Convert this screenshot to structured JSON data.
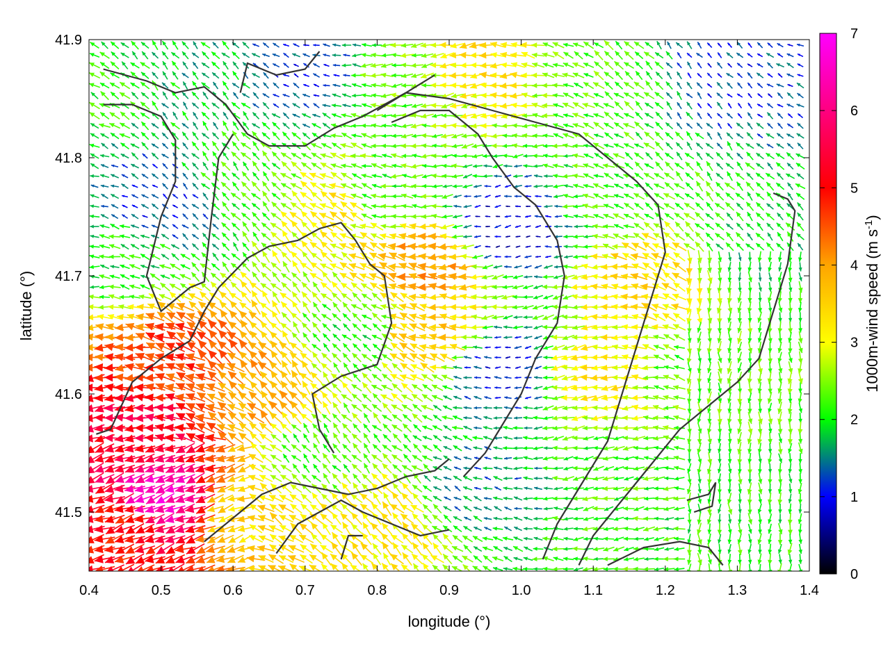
{
  "chart_data": {
    "type": "vector-field",
    "xlabel": "longitude (°)",
    "ylabel": "latitude (°)",
    "xlim": [
      0.4,
      1.4
    ],
    "ylim": [
      41.45,
      41.9
    ],
    "x_ticks": [
      "0.4",
      "0.5",
      "0.6",
      "0.7",
      "0.8",
      "0.9",
      "1.0",
      "1.1",
      "1.2",
      "1.3",
      "1.4"
    ],
    "y_ticks": [
      "41.5",
      "41.6",
      "41.7",
      "41.8",
      "41.9"
    ],
    "colorbar": {
      "label_main": "1000m-wind speed (m s",
      "label_sup": "-1",
      "label_end": ")",
      "range": [
        0,
        7
      ],
      "ticks": [
        "0",
        "1",
        "2",
        "3",
        "4",
        "5",
        "6",
        "7"
      ],
      "colormap": [
        "#000000",
        "#0000ff",
        "#00ff00",
        "#ffff00",
        "#ff0000",
        "#ff00ff"
      ]
    },
    "speed_regions": [
      {
        "lon": 0.42,
        "lat": 41.87,
        "speed": 2.1
      },
      {
        "lon": 0.55,
        "lat": 41.86,
        "speed": 1.8
      },
      {
        "lon": 0.7,
        "lat": 41.87,
        "speed": 1.2
      },
      {
        "lon": 0.83,
        "lat": 41.86,
        "speed": 2.4
      },
      {
        "lon": 0.95,
        "lat": 41.88,
        "speed": 3.3
      },
      {
        "lon": 1.1,
        "lat": 41.87,
        "speed": 2.3
      },
      {
        "lon": 1.3,
        "lat": 41.87,
        "speed": 1.2
      },
      {
        "lon": 0.5,
        "lat": 41.76,
        "speed": 1.2
      },
      {
        "lon": 0.45,
        "lat": 41.72,
        "speed": 2.0
      },
      {
        "lon": 0.62,
        "lat": 41.78,
        "speed": 2.2
      },
      {
        "lon": 0.74,
        "lat": 41.76,
        "speed": 3.2
      },
      {
        "lon": 0.8,
        "lat": 41.77,
        "speed": 2.2
      },
      {
        "lon": 0.87,
        "lat": 41.71,
        "speed": 4.0
      },
      {
        "lon": 0.98,
        "lat": 41.74,
        "speed": 0.8
      },
      {
        "lon": 1.12,
        "lat": 41.77,
        "speed": 2.2
      },
      {
        "lon": 1.18,
        "lat": 41.7,
        "speed": 3.4
      },
      {
        "lon": 1.32,
        "lat": 41.72,
        "speed": 1.9
      },
      {
        "lon": 0.53,
        "lat": 41.63,
        "speed": 4.6
      },
      {
        "lon": 0.63,
        "lat": 41.6,
        "speed": 3.9
      },
      {
        "lon": 0.78,
        "lat": 41.65,
        "speed": 2.1
      },
      {
        "lon": 0.86,
        "lat": 41.65,
        "speed": 3.6
      },
      {
        "lon": 0.98,
        "lat": 41.62,
        "speed": 1.0
      },
      {
        "lon": 1.1,
        "lat": 41.62,
        "speed": 3.2
      },
      {
        "lon": 1.25,
        "lat": 41.62,
        "speed": 2.3
      },
      {
        "lon": 0.48,
        "lat": 41.57,
        "speed": 5.4
      },
      {
        "lon": 0.45,
        "lat": 41.49,
        "speed": 4.9
      },
      {
        "lon": 0.5,
        "lat": 41.51,
        "speed": 6.5
      },
      {
        "lon": 0.62,
        "lat": 41.5,
        "speed": 3.4
      },
      {
        "lon": 0.72,
        "lat": 41.55,
        "speed": 2.2
      },
      {
        "lon": 0.8,
        "lat": 41.49,
        "speed": 3.2
      },
      {
        "lon": 0.95,
        "lat": 41.52,
        "speed": 1.5
      },
      {
        "lon": 1.12,
        "lat": 41.52,
        "speed": 2.2
      },
      {
        "lon": 1.3,
        "lat": 41.5,
        "speed": 2.1
      }
    ],
    "contours": [
      [
        [
          0.42,
          41.875
        ],
        [
          0.48,
          41.865
        ],
        [
          0.52,
          41.855
        ],
        [
          0.56,
          41.86
        ],
        [
          0.59,
          41.845
        ],
        [
          0.62,
          41.82
        ],
        [
          0.65,
          41.81
        ],
        [
          0.7,
          41.81
        ],
        [
          0.74,
          41.825
        ],
        [
          0.78,
          41.835
        ],
        [
          0.81,
          41.845
        ],
        [
          0.84,
          41.855
        ],
        [
          0.88,
          41.87
        ]
      ],
      [
        [
          0.42,
          41.845
        ],
        [
          0.46,
          41.845
        ],
        [
          0.5,
          41.835
        ],
        [
          0.52,
          41.815
        ],
        [
          0.52,
          41.78
        ],
        [
          0.5,
          41.75
        ],
        [
          0.48,
          41.7
        ],
        [
          0.5,
          41.67
        ],
        [
          0.54,
          41.69
        ],
        [
          0.56,
          41.695
        ],
        [
          0.57,
          41.75
        ],
        [
          0.58,
          41.8
        ],
        [
          0.6,
          41.82
        ]
      ],
      [
        [
          0.61,
          41.855
        ],
        [
          0.62,
          41.88
        ],
        [
          0.66,
          41.87
        ],
        [
          0.7,
          41.875
        ],
        [
          0.72,
          41.89
        ]
      ],
      [
        [
          0.41,
          41.566
        ],
        [
          0.43,
          41.57
        ],
        [
          0.46,
          41.61
        ],
        [
          0.5,
          41.63
        ],
        [
          0.54,
          41.645
        ],
        [
          0.56,
          41.67
        ],
        [
          0.58,
          41.69
        ],
        [
          0.62,
          41.715
        ],
        [
          0.65,
          41.725
        ],
        [
          0.69,
          41.73
        ],
        [
          0.72,
          41.74
        ],
        [
          0.75,
          41.745
        ],
        [
          0.77,
          41.73
        ],
        [
          0.79,
          41.71
        ],
        [
          0.81,
          41.7
        ],
        [
          0.82,
          41.66
        ],
        [
          0.8,
          41.625
        ],
        [
          0.75,
          41.615
        ],
        [
          0.71,
          41.6
        ],
        [
          0.72,
          41.57
        ],
        [
          0.74,
          41.55
        ]
      ],
      [
        [
          0.82,
          41.83
        ],
        [
          0.86,
          41.84
        ],
        [
          0.9,
          41.84
        ],
        [
          0.94,
          41.82
        ],
        [
          0.96,
          41.8
        ],
        [
          0.99,
          41.775
        ],
        [
          1.02,
          41.76
        ],
        [
          1.05,
          41.73
        ],
        [
          1.06,
          41.7
        ],
        [
          1.05,
          41.66
        ],
        [
          1.02,
          41.63
        ],
        [
          1.0,
          41.6
        ],
        [
          0.97,
          41.57
        ],
        [
          0.95,
          41.55
        ],
        [
          0.92,
          41.53
        ]
      ],
      [
        [
          0.8,
          41.84
        ],
        [
          0.84,
          41.855
        ],
        [
          0.9,
          41.85
        ],
        [
          0.96,
          41.84
        ],
        [
          1.02,
          41.83
        ],
        [
          1.08,
          41.82
        ],
        [
          1.12,
          41.8
        ],
        [
          1.16,
          41.78
        ],
        [
          1.19,
          41.76
        ],
        [
          1.2,
          41.72
        ],
        [
          1.18,
          41.68
        ],
        [
          1.16,
          41.64
        ],
        [
          1.14,
          41.6
        ],
        [
          1.12,
          41.56
        ],
        [
          1.08,
          41.52
        ],
        [
          1.05,
          41.49
        ],
        [
          1.03,
          41.46
        ]
      ],
      [
        [
          1.12,
          41.455
        ],
        [
          1.17,
          41.47
        ],
        [
          1.22,
          41.475
        ],
        [
          1.26,
          41.47
        ],
        [
          1.28,
          41.455
        ]
      ],
      [
        [
          1.35,
          41.77
        ],
        [
          1.37,
          41.765
        ],
        [
          1.38,
          41.755
        ],
        [
          1.37,
          41.71
        ],
        [
          1.35,
          41.67
        ],
        [
          1.33,
          41.63
        ],
        [
          1.3,
          41.61
        ],
        [
          1.27,
          41.595
        ],
        [
          1.22,
          41.57
        ],
        [
          1.18,
          41.54
        ],
        [
          1.14,
          41.51
        ],
        [
          1.1,
          41.48
        ],
        [
          1.08,
          41.455
        ]
      ],
      [
        [
          1.23,
          41.51
        ],
        [
          1.26,
          41.515
        ],
        [
          1.27,
          41.525
        ],
        [
          1.265,
          41.505
        ],
        [
          1.24,
          41.5
        ]
      ],
      [
        [
          0.56,
          41.475
        ],
        [
          0.6,
          41.495
        ],
        [
          0.64,
          41.515
        ],
        [
          0.68,
          41.525
        ],
        [
          0.72,
          41.52
        ],
        [
          0.76,
          41.515
        ],
        [
          0.8,
          41.52
        ],
        [
          0.84,
          41.53
        ],
        [
          0.88,
          41.535
        ],
        [
          0.9,
          41.545
        ]
      ],
      [
        [
          0.66,
          41.465
        ],
        [
          0.69,
          41.49
        ],
        [
          0.72,
          41.5
        ],
        [
          0.75,
          41.51
        ],
        [
          0.78,
          41.5
        ],
        [
          0.82,
          41.49
        ],
        [
          0.86,
          41.48
        ],
        [
          0.9,
          41.485
        ]
      ],
      [
        [
          0.75,
          41.46
        ],
        [
          0.76,
          41.48
        ],
        [
          0.78,
          41.48
        ]
      ]
    ]
  }
}
